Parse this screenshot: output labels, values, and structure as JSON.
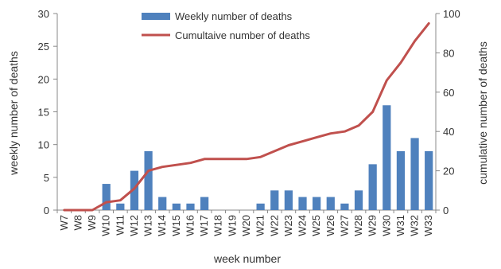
{
  "chart_data": {
    "type": "bar",
    "categories": [
      "W7",
      "W8",
      "W9",
      "W10",
      "W11",
      "W12",
      "W13",
      "W14",
      "W15",
      "W16",
      "W17",
      "W18",
      "W19",
      "W20",
      "W21",
      "W22",
      "W23",
      "W24",
      "W25",
      "W26",
      "W27",
      "W28",
      "W29",
      "W30",
      "W31",
      "W32",
      "W33"
    ],
    "series": [
      {
        "name": "Weekly number of deaths",
        "type": "bar",
        "axis": "left",
        "color": "#4F81BD",
        "values": [
          0,
          0,
          0,
          4,
          1,
          6,
          9,
          2,
          1,
          1,
          2,
          0,
          0,
          0,
          1,
          3,
          3,
          2,
          2,
          2,
          1,
          3,
          7,
          16,
          9,
          11,
          9
        ]
      },
      {
        "name": "Cumultaive number of deaths",
        "type": "line",
        "axis": "right",
        "color": "#C0504D",
        "values": [
          0,
          0,
          0,
          4,
          5,
          11,
          20,
          22,
          23,
          24,
          26,
          26,
          26,
          26,
          27,
          30,
          33,
          35,
          37,
          39,
          40,
          43,
          50,
          66,
          75,
          86,
          95
        ]
      }
    ],
    "xlabel": "week number",
    "ylabel": "weekly number of deaths",
    "y2label": "cumulative number of deaths",
    "ylim": [
      0,
      30
    ],
    "yticks": [
      0,
      5,
      10,
      15,
      20,
      25,
      30
    ],
    "y2lim": [
      0,
      100
    ],
    "y2ticks": [
      0,
      20,
      40,
      60,
      80,
      100
    ],
    "grid": false,
    "legend_position": "top-center"
  }
}
